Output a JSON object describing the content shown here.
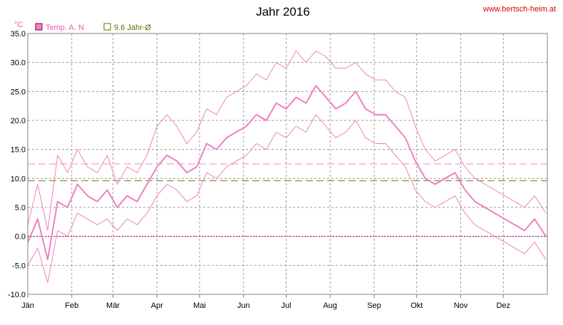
{
  "site_label": "www.bertsch-heim.at",
  "chart_data": {
    "type": "line",
    "title": "Jahr 2016",
    "ylabel": "°C",
    "ylim": [
      -10,
      35
    ],
    "ytick_values": [
      -10,
      -5,
      0,
      5,
      10,
      15,
      20,
      25,
      30,
      35
    ],
    "ytick_labels": [
      "-10.0",
      "-5.0",
      "0.0",
      "5.0",
      "10.0",
      "15.0",
      "20.0",
      "25.0",
      "30.0",
      "35.0"
    ],
    "xlim": [
      0,
      366
    ],
    "x_unit": "day of year",
    "month_labels": [
      "Jän",
      "Feb",
      "Mär",
      "Apr",
      "Mai",
      "Jun",
      "Jul",
      "Aug",
      "Sep",
      "Okt",
      "Nov",
      "Dez"
    ],
    "month_start_days": [
      0,
      31,
      60,
      91,
      121,
      152,
      182,
      213,
      244,
      274,
      305,
      335
    ],
    "grid": true,
    "legend_position": "top-left",
    "legend": [
      {
        "label": "Temp. A. N",
        "color": "#f080c0"
      },
      {
        "label": "9.6 Jahr-Ø",
        "color": "#6a6a00"
      }
    ],
    "reference_lines": [
      {
        "name": "9.6 Jahr-Ø",
        "y": 9.6,
        "color": "#8a8a20"
      },
      {
        "name": "",
        "y": 12.5,
        "color": "#f0a0c8"
      },
      {
        "name": "",
        "y": 0.0,
        "color": "#c01060"
      }
    ],
    "series": [
      {
        "name": "Temp. A. N",
        "role": "mean",
        "color": "#f080c0",
        "x": [
          0,
          7,
          14,
          21,
          28,
          35,
          42,
          49,
          56,
          63,
          70,
          77,
          84,
          91,
          98,
          105,
          112,
          119,
          126,
          133,
          140,
          147,
          154,
          161,
          168,
          175,
          182,
          189,
          196,
          203,
          210,
          217,
          224,
          231,
          238,
          245,
          252,
          259,
          266,
          273,
          280,
          287,
          294,
          301,
          308,
          315,
          322,
          329,
          336,
          343,
          350,
          357,
          365
        ],
        "y": [
          -1,
          3,
          -4,
          6,
          5,
          9,
          7,
          6,
          8,
          5,
          7,
          6,
          9,
          12,
          14,
          13,
          11,
          12,
          16,
          15,
          17,
          18,
          19,
          21,
          20,
          23,
          22,
          24,
          23,
          26,
          24,
          22,
          23,
          25,
          22,
          21,
          21,
          19,
          17,
          13,
          10,
          9,
          10,
          11,
          8,
          6,
          5,
          4,
          3,
          2,
          1,
          3,
          0
        ]
      },
      {
        "name": "",
        "role": "max",
        "color": "#f080c0",
        "x": [
          0,
          7,
          14,
          21,
          28,
          35,
          42,
          49,
          56,
          63,
          70,
          77,
          84,
          91,
          98,
          105,
          112,
          119,
          126,
          133,
          140,
          147,
          154,
          161,
          168,
          175,
          182,
          189,
          196,
          203,
          210,
          217,
          224,
          231,
          238,
          245,
          252,
          259,
          266,
          273,
          280,
          287,
          294,
          301,
          308,
          315,
          322,
          329,
          336,
          343,
          350,
          357,
          365
        ],
        "y": [
          2,
          9,
          1,
          14,
          11,
          15,
          12,
          11,
          14,
          9,
          12,
          11,
          14,
          19,
          21,
          19,
          16,
          18,
          22,
          21,
          24,
          25,
          26,
          28,
          27,
          30,
          29,
          32,
          30,
          32,
          31,
          29,
          29,
          30,
          28,
          27,
          27,
          25,
          24,
          19,
          15,
          13,
          14,
          15,
          12,
          10,
          9,
          8,
          7,
          6,
          5,
          7,
          4
        ]
      },
      {
        "name": "",
        "role": "min",
        "color": "#f080c0",
        "x": [
          0,
          7,
          14,
          21,
          28,
          35,
          42,
          49,
          56,
          63,
          70,
          77,
          84,
          91,
          98,
          105,
          112,
          119,
          126,
          133,
          140,
          147,
          154,
          161,
          168,
          175,
          182,
          189,
          196,
          203,
          210,
          217,
          224,
          231,
          238,
          245,
          252,
          259,
          266,
          273,
          280,
          287,
          294,
          301,
          308,
          315,
          322,
          329,
          336,
          343,
          350,
          357,
          365
        ],
        "y": [
          -5,
          -2,
          -8,
          1,
          0,
          4,
          3,
          2,
          3,
          1,
          3,
          2,
          4,
          7,
          9,
          8,
          6,
          7,
          11,
          10,
          12,
          13,
          14,
          16,
          15,
          18,
          17,
          19,
          18,
          21,
          19,
          17,
          18,
          20,
          17,
          16,
          16,
          14,
          12,
          8,
          6,
          5,
          6,
          7,
          4,
          2,
          1,
          0,
          -1,
          -2,
          -3,
          -1,
          -4
        ]
      }
    ]
  }
}
